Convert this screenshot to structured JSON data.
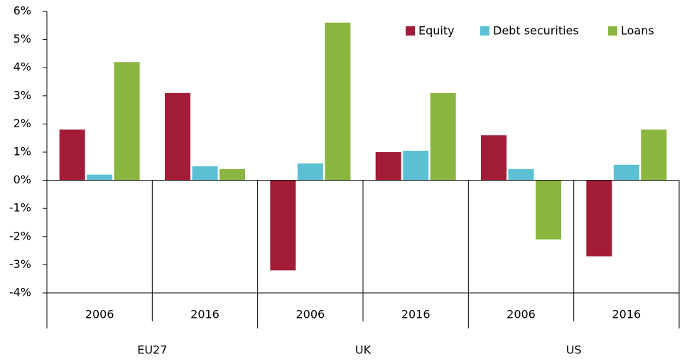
{
  "chart_data": {
    "type": "bar",
    "categories": [
      "2006",
      "2016",
      "2006",
      "2016",
      "2006",
      "2016"
    ],
    "groups": [
      "EU27",
      "UK",
      "US"
    ],
    "series": [
      {
        "name": "Equity",
        "color": "#a31c37",
        "values": [
          1.8,
          3.1,
          -3.2,
          1.0,
          1.6,
          -2.7
        ]
      },
      {
        "name": "Debt securities",
        "color": "#5bc0d3",
        "values": [
          0.2,
          0.5,
          0.6,
          1.05,
          0.4,
          0.55
        ]
      },
      {
        "name": "Loans",
        "color": "#8ab53f",
        "values": [
          4.2,
          0.4,
          5.6,
          3.1,
          -2.1,
          1.8
        ]
      }
    ],
    "ylim": [
      -4,
      6
    ],
    "yticks": [
      {
        "value": -4,
        "label": "-4%"
      },
      {
        "value": -3,
        "label": "-3%"
      },
      {
        "value": -2,
        "label": "-2%"
      },
      {
        "value": -1,
        "label": "-1%"
      },
      {
        "value": 0,
        "label": "0%"
      },
      {
        "value": 1,
        "label": "1%"
      },
      {
        "value": 2,
        "label": "2%"
      },
      {
        "value": 3,
        "label": "3%"
      },
      {
        "value": 4,
        "label": "4%"
      },
      {
        "value": 5,
        "label": "5%"
      },
      {
        "value": 6,
        "label": "6%"
      }
    ],
    "legend": "top-right"
  }
}
